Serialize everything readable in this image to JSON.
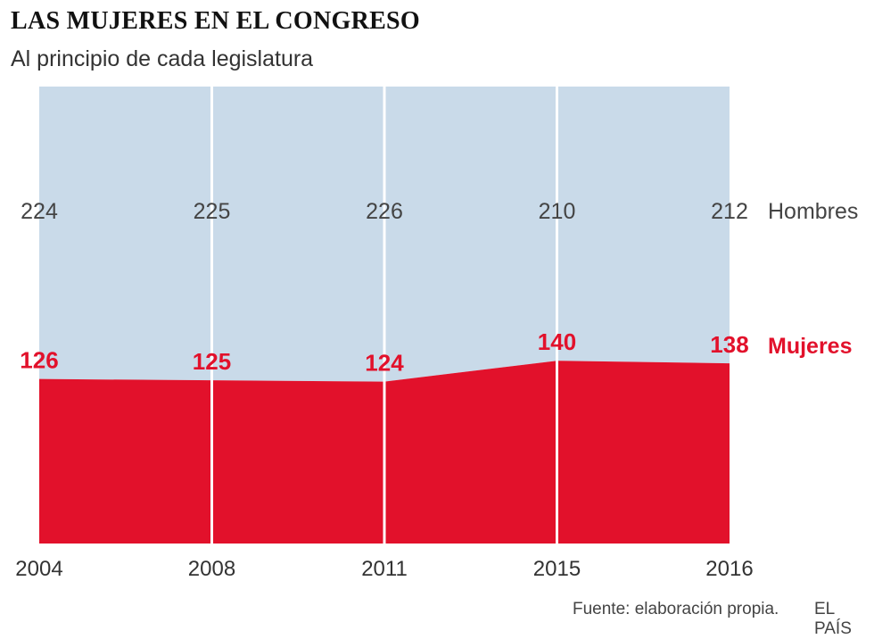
{
  "title": "LAS MUJERES EN EL CONGRESO",
  "subtitle": "Al principio de cada legislatura",
  "source": "Fuente: elaboración propia.",
  "brand": "EL PAÍS",
  "colors": {
    "hombres": "#c9dae9",
    "mujeres": "#e2112b",
    "hombres_text": "#444444"
  },
  "chart_data": {
    "type": "area",
    "stacked": true,
    "x": [
      "2004",
      "2008",
      "2011",
      "2015",
      "2016"
    ],
    "series": [
      {
        "name": "Mujeres",
        "values": [
          126,
          125,
          124,
          140,
          138
        ]
      },
      {
        "name": "Hombres",
        "values": [
          224,
          225,
          226,
          210,
          212
        ]
      }
    ],
    "ylim": [
      0,
      350
    ],
    "grid": "vertical"
  }
}
